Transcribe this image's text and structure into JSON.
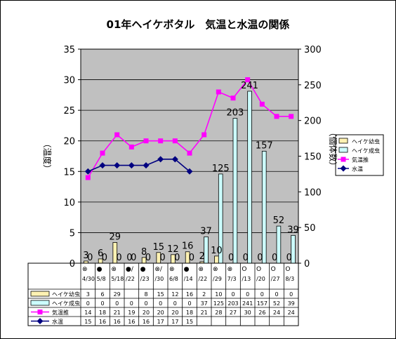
{
  "chart_data": {
    "type": "bar+line",
    "title": "01年ヘイケボタル　気温と水温の関係",
    "categories": [
      "4/30",
      "5/8",
      "5/18",
      "5/22",
      "5/23",
      "5/30",
      "6/8",
      "6/14",
      "6/22",
      "6/29",
      "7/3",
      "7/13",
      "7/20",
      "7/27",
      "8/3"
    ],
    "category_lines": [
      [
        "4/30"
      ],
      [
        "5/8"
      ],
      [
        "5/18"
      ],
      [
        "/22"
      ],
      [
        "/23"
      ],
      [
        "/30"
      ],
      [
        "6/8"
      ],
      [
        "/14"
      ],
      [
        "/22"
      ],
      [
        "/29"
      ],
      [
        "7/3"
      ],
      [
        "/13"
      ],
      [
        "/20"
      ],
      [
        "/27"
      ],
      [
        "8/3"
      ]
    ],
    "category_markers": [
      "⊗",
      "●",
      "⊗",
      "●/",
      "●",
      "⊗/",
      "⊗",
      "●",
      "⊗",
      "⊗",
      "⊗",
      "O",
      "O",
      "O",
      "O"
    ],
    "ylabel_left": "（温度）",
    "ylabel_right": "（個体数）",
    "ylim_left": [
      0,
      35
    ],
    "ylim_right": [
      0,
      300
    ],
    "yticks_left": [
      0,
      5,
      10,
      15,
      20,
      25,
      30,
      35
    ],
    "yticks_right": [
      0,
      50,
      100,
      150,
      200,
      250,
      300
    ],
    "series": [
      {
        "name": "ヘイケ幼虫",
        "kind": "bar",
        "axis": "right",
        "color": "#FFF2B3",
        "values": [
          3,
          6,
          29,
          0,
          8,
          15,
          12,
          16,
          2,
          10,
          0,
          0,
          0,
          0,
          0
        ]
      },
      {
        "name": "ヘイケ成虫",
        "kind": "bar",
        "axis": "right",
        "color": "#CCFFFF",
        "values": [
          0,
          0,
          0,
          0,
          0,
          0,
          0,
          0,
          37,
          125,
          203,
          241,
          157,
          52,
          39
        ]
      },
      {
        "name": "気温推",
        "kind": "line",
        "axis": "left",
        "color": "#FF00FF",
        "marker": "square",
        "values": [
          14,
          18,
          21,
          19,
          20,
          20,
          20,
          18,
          21,
          28,
          27,
          30,
          26,
          24,
          24
        ]
      },
      {
        "name": "水温",
        "kind": "line",
        "axis": "left",
        "color": "#000080",
        "marker": "diamond",
        "values": [
          15,
          16,
          16,
          16,
          16,
          17,
          17,
          15,
          null,
          null,
          null,
          null,
          null,
          null,
          null
        ]
      }
    ],
    "plot_background": "#C0C0C0",
    "legend_position": "right",
    "data_table": true,
    "data_table_rows": [
      {
        "label": "ヘイケ幼虫",
        "values": [
          "3",
          "6",
          "29",
          "",
          "8",
          "15",
          "12",
          "16",
          "2",
          "10",
          "0",
          "0",
          "0",
          "0",
          "0"
        ]
      },
      {
        "label": "ヘイケ成虫",
        "values": [
          "0",
          "0",
          "0",
          "0",
          "0",
          "0",
          "0",
          "0",
          "37",
          "125",
          "203",
          "241",
          "157",
          "52",
          "39"
        ]
      },
      {
        "label": "気温推",
        "values": [
          "14",
          "18",
          "21",
          "19",
          "20",
          "20",
          "20",
          "18",
          "21",
          "28",
          "27",
          "30",
          "26",
          "24",
          "24"
        ]
      },
      {
        "label": "水温",
        "values": [
          "15",
          "16",
          "16",
          "16",
          "16",
          "17",
          "17",
          "15",
          "",
          "",
          "",
          "",
          "",
          "",
          ""
        ]
      }
    ]
  }
}
